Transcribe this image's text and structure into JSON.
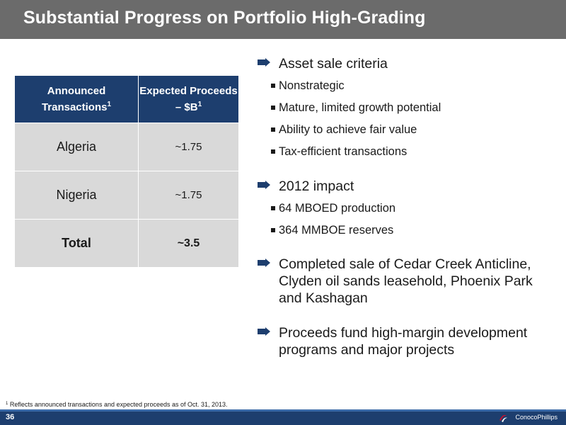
{
  "title": "Substantial Progress on Portfolio High-Grading",
  "table": {
    "headers": [
      {
        "text": "Announced Transactions",
        "sup": "1"
      },
      {
        "text": "Expected Proceeds – $B",
        "sup": "1"
      }
    ],
    "rows": [
      {
        "asset": "Algeria",
        "proceeds": "~1.75"
      },
      {
        "asset": "Nigeria",
        "proceeds": "~1.75"
      }
    ],
    "total": {
      "label": "Total",
      "proceeds": "~3.5"
    }
  },
  "bullets": [
    {
      "text": "Asset sale criteria",
      "sub": [
        "Nonstrategic",
        "Mature, limited growth potential",
        "Ability to achieve fair value",
        "Tax-efficient transactions"
      ]
    },
    {
      "text": "2012 impact",
      "sub": [
        "64 MBOED production",
        "364 MMBOE reserves"
      ]
    },
    {
      "text": "Completed sale of Cedar Creek Anticline, Clyden oil sands leasehold, Phoenix Park and Kashagan",
      "sub": []
    },
    {
      "text": "Proceeds fund high-margin development programs and major projects",
      "sub": []
    }
  ],
  "footnote": {
    "marker": "1",
    "text": "Reflects announced transactions and expected proceeds as of Oct. 31, 2013."
  },
  "page_number": "36",
  "logo_text": "ConocoPhillips",
  "colors": {
    "header_bar": "#6b6b6b",
    "navy": "#1d3e6e",
    "cell_gray": "#d9d9d9"
  },
  "icons": {
    "bullet": "arrow-bullet-icon",
    "sub_bullet": "square-bullet-icon"
  }
}
